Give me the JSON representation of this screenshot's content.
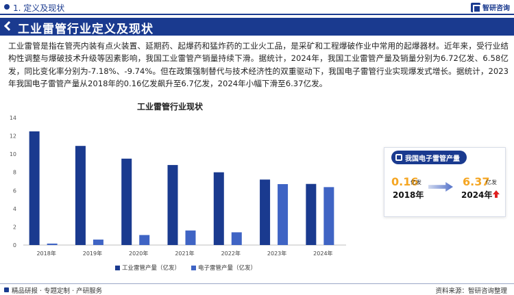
{
  "header": {
    "section_label": "1. 定义及现状",
    "logo_text": "智研咨询"
  },
  "banner": {
    "title": "工业雷管行业定义及现状"
  },
  "intro": {
    "paragraph": "工业雷管是指在管壳内装有点火装置、延期药、起爆药和猛炸药的工业火工品，是采矿和工程爆破作业中常用的起爆器材。近年来，受行业结构性调整与爆破技术升级等因素影响，我国工业雷管产销量持续下滑。据统计，2024年，我国工业雷管产量及销量分别为6.72亿发、6.58亿发，同比变化率分别为-7.18%、-9.74%。但在政策强制替代与技术经济性的双重驱动下，我国电子雷管行业实现爆发式增长。据统计，2023年我国电子雷管产量从2018年的0.16亿发飙升至6.7亿发，2024年小幅下滑至6.37亿发。"
  },
  "chart_data": {
    "type": "bar",
    "title": "工业雷管行业现状",
    "categories": [
      "2018年",
      "2019年",
      "2020年",
      "2021年",
      "2022年",
      "2023年",
      "2024年"
    ],
    "series": [
      {
        "name": "工业雷管产量（亿发）",
        "values": [
          12.5,
          10.9,
          9.5,
          8.8,
          8.0,
          7.2,
          6.72
        ],
        "color": "#1a3a8f"
      },
      {
        "name": "电子雷管产量（亿发）",
        "values": [
          0.16,
          0.6,
          1.1,
          1.6,
          1.4,
          6.7,
          6.37
        ],
        "color": "#3f64c4"
      }
    ],
    "ylim": [
      0,
      14
    ],
    "yticks": [
      0,
      2,
      4,
      6,
      8,
      10,
      12,
      14
    ],
    "grid": false,
    "legend": "bottom"
  },
  "info_card": {
    "title": "我国电子雷管产量",
    "start_value": "0.16",
    "start_unit": "亿发",
    "start_year": "2018年",
    "end_value": "6.37",
    "end_unit": "亿发",
    "end_year": "2024年",
    "trend_icon": "up-arrow-icon"
  },
  "footer": {
    "left": "精品研报 · 专题定制 · 产研服务",
    "right": "资料来源：智研咨询整理"
  },
  "colors": {
    "brand": "#1a3a8f",
    "highlight": "#f5a623",
    "trend_up": "#e02020"
  }
}
